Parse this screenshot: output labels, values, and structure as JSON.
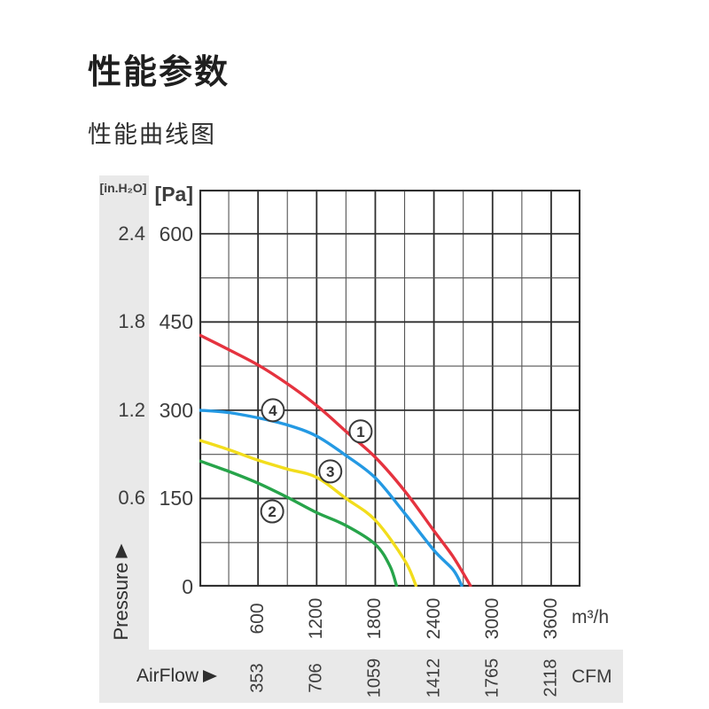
{
  "page": {
    "title": "性能参数",
    "subtitle": "性能曲线图"
  },
  "axes": {
    "pressure_pa": {
      "unit": "[Pa]",
      "title": "Pressure",
      "ticks": [
        "600",
        "450",
        "300",
        "150",
        "0"
      ],
      "tick_values": [
        600,
        450,
        300,
        150,
        0
      ]
    },
    "pressure_inh2o": {
      "unit": "[in.H₂O]",
      "ticks": [
        {
          "label": "2.4",
          "pa": 600
        },
        {
          "label": "1.8",
          "pa": 450
        },
        {
          "label": "1.2",
          "pa": 300
        },
        {
          "label": "0.6",
          "pa": 150
        }
      ]
    },
    "airflow_m3h": {
      "unit": "m³/h",
      "title": "AirFlow",
      "ticks": [
        "600",
        "1200",
        "1800",
        "2400",
        "3000",
        "3600"
      ],
      "tick_values": [
        600,
        1200,
        1800,
        2400,
        3000,
        3600
      ]
    },
    "airflow_cfm": {
      "unit": "CFM",
      "ticks": [
        {
          "label": "353",
          "m3h": 600
        },
        {
          "label": "706",
          "m3h": 1200
        },
        {
          "label": "1059",
          "m3h": 1800
        },
        {
          "label": "1412",
          "m3h": 2400
        },
        {
          "label": "1765",
          "m3h": 3000
        },
        {
          "label": "2118",
          "m3h": 3600
        }
      ]
    }
  },
  "chart_data": {
    "type": "line",
    "title": "性能曲线图 (fan performance curves)",
    "xlabel": "AirFlow [m³/h] (secondary: CFM)",
    "ylabel": "Pressure [Pa] (secondary: in.H₂O)",
    "xlim": [
      0,
      3900
    ],
    "ylim": [
      0,
      675
    ],
    "x_major_step": 600,
    "x_minor_step": 300,
    "y_major_step": 150,
    "y_minor_step": 75,
    "grid": "both",
    "legend_position": "numbered circles placed on curves",
    "series": [
      {
        "name": "1",
        "color": "#e5333f",
        "label_at": {
          "x": 1650,
          "y": 264
        },
        "points": [
          [
            0,
            428
          ],
          [
            300,
            403
          ],
          [
            600,
            377
          ],
          [
            900,
            345
          ],
          [
            1200,
            308
          ],
          [
            1500,
            264
          ],
          [
            1800,
            220
          ],
          [
            2100,
            163
          ],
          [
            2400,
            95
          ],
          [
            2600,
            50
          ],
          [
            2780,
            0
          ]
        ]
      },
      {
        "name": "2",
        "color": "#27a44a",
        "label_at": {
          "x": 745,
          "y": 128
        },
        "points": [
          [
            0,
            214
          ],
          [
            300,
            196
          ],
          [
            600,
            176
          ],
          [
            900,
            152
          ],
          [
            1200,
            126
          ],
          [
            1500,
            104
          ],
          [
            1800,
            72
          ],
          [
            1950,
            35
          ],
          [
            2020,
            0
          ]
        ]
      },
      {
        "name": "3",
        "color": "#f2dd1c",
        "label_at": {
          "x": 1340,
          "y": 196
        },
        "points": [
          [
            0,
            249
          ],
          [
            300,
            233
          ],
          [
            600,
            215
          ],
          [
            900,
            200
          ],
          [
            1200,
            186
          ],
          [
            1500,
            150
          ],
          [
            1800,
            113
          ],
          [
            2100,
            45
          ],
          [
            2220,
            0
          ]
        ]
      },
      {
        "name": "4",
        "color": "#2499e3",
        "label_at": {
          "x": 752,
          "y": 300
        },
        "points": [
          [
            0,
            300
          ],
          [
            300,
            296
          ],
          [
            600,
            287
          ],
          [
            900,
            275
          ],
          [
            1200,
            256
          ],
          [
            1500,
            223
          ],
          [
            1800,
            185
          ],
          [
            2100,
            125
          ],
          [
            2400,
            62
          ],
          [
            2600,
            28
          ],
          [
            2690,
            0
          ]
        ]
      }
    ]
  },
  "style": {
    "strip_color": "#e9e9e9",
    "grid_major_color": "#2f2f2f",
    "grid_minor_color": "#555555",
    "curve_label_circle": {
      "fill": "#ffffff",
      "stroke": "#3a3a3a"
    },
    "text_color": "#3d3d3d"
  }
}
